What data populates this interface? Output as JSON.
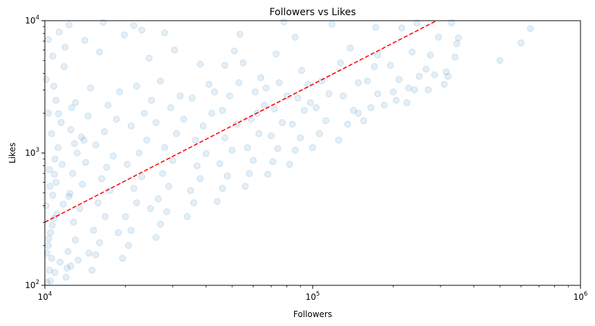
{
  "chart_data": {
    "type": "scatter",
    "title": "Followers vs Likes",
    "xlabel": "Followers",
    "ylabel": "Likes",
    "xscale": "log",
    "yscale": "log",
    "xlim": [
      10000,
      1000000
    ],
    "ylim": [
      100,
      10000
    ],
    "grid": false,
    "x_ticks": [
      {
        "value": 10000,
        "base": "10",
        "exp": "4"
      },
      {
        "value": 100000,
        "base": "10",
        "exp": "5"
      },
      {
        "value": 1000000,
        "base": "10",
        "exp": "6"
      }
    ],
    "y_ticks": [
      {
        "value": 100,
        "base": "10",
        "exp": "2"
      },
      {
        "value": 1000,
        "base": "10",
        "exp": "3"
      },
      {
        "value": 10000,
        "base": "10",
        "exp": "4"
      }
    ],
    "marker_color": "#1f77b4",
    "marker_alpha": 0.12,
    "trend_color": "#ff0000",
    "trend_line": {
      "style": "dashed",
      "x": [
        10000,
        290000
      ],
      "y": [
        300,
        10000
      ]
    },
    "series": [
      {
        "points": [
          [
            10200,
            105
          ],
          [
            10400,
            130
          ],
          [
            10600,
            160
          ],
          [
            10300,
            200
          ],
          [
            10500,
            250
          ],
          [
            10800,
            320
          ],
          [
            10100,
            400
          ],
          [
            10700,
            480
          ],
          [
            11000,
            600
          ],
          [
            10400,
            750
          ],
          [
            10900,
            900
          ],
          [
            11200,
            1100
          ],
          [
            10600,
            1400
          ],
          [
            11500,
            1700
          ],
          [
            10300,
            2000
          ],
          [
            11000,
            2500
          ],
          [
            10800,
            3200
          ],
          [
            11800,
            4500
          ],
          [
            11300,
            8200
          ],
          [
            12000,
            115
          ],
          [
            12500,
            140
          ],
          [
            12200,
            180
          ],
          [
            13000,
            220
          ],
          [
            12800,
            300
          ],
          [
            13500,
            380
          ],
          [
            12300,
            470
          ],
          [
            13800,
            580
          ],
          [
            12700,
            700
          ],
          [
            14200,
            850
          ],
          [
            13200,
            1000
          ],
          [
            14000,
            1250
          ],
          [
            12500,
            1500
          ],
          [
            14500,
            1900
          ],
          [
            13000,
            2400
          ],
          [
            14800,
            3100
          ],
          [
            15000,
            130
          ],
          [
            15500,
            170
          ],
          [
            16000,
            210
          ],
          [
            15200,
            260
          ],
          [
            16800,
            330
          ],
          [
            15800,
            420
          ],
          [
            17500,
            520
          ],
          [
            16300,
            640
          ],
          [
            17000,
            780
          ],
          [
            18000,
            950
          ],
          [
            15500,
            1150
          ],
          [
            16700,
            1450
          ],
          [
            18500,
            1800
          ],
          [
            17200,
            2300
          ],
          [
            19000,
            2900
          ],
          [
            16000,
            5800
          ],
          [
            19500,
            160
          ],
          [
            20500,
            200
          ],
          [
            21000,
            260
          ],
          [
            20000,
            330
          ],
          [
            22000,
            420
          ],
          [
            21500,
            540
          ],
          [
            23000,
            660
          ],
          [
            20300,
            820
          ],
          [
            22500,
            1000
          ],
          [
            24000,
            1250
          ],
          [
            21000,
            1600
          ],
          [
            23500,
            2000
          ],
          [
            25000,
            2500
          ],
          [
            22000,
            3200
          ],
          [
            24500,
            5200
          ],
          [
            21500,
            9200
          ],
          [
            26000,
            230
          ],
          [
            27000,
            290
          ],
          [
            28500,
            360
          ],
          [
            26500,
            450
          ],
          [
            29000,
            560
          ],
          [
            27500,
            700
          ],
          [
            30000,
            880
          ],
          [
            28000,
            1100
          ],
          [
            31000,
            1400
          ],
          [
            26000,
            1700
          ],
          [
            29500,
            2200
          ],
          [
            32000,
            2700
          ],
          [
            27000,
            3500
          ],
          [
            30500,
            6000
          ],
          [
            28000,
            8100
          ],
          [
            34000,
            330
          ],
          [
            36000,
            420
          ],
          [
            35000,
            520
          ],
          [
            38000,
            640
          ],
          [
            37000,
            800
          ],
          [
            40000,
            990
          ],
          [
            36500,
            1250
          ],
          [
            39000,
            1600
          ],
          [
            42000,
            2000
          ],
          [
            35500,
            2600
          ],
          [
            41000,
            3300
          ],
          [
            38000,
            4700
          ],
          [
            44000,
            430
          ],
          [
            46000,
            540
          ],
          [
            48000,
            670
          ],
          [
            45000,
            830
          ],
          [
            50000,
            1050
          ],
          [
            47000,
            1300
          ],
          [
            52000,
            1650
          ],
          [
            46000,
            2100
          ],
          [
            49000,
            2700
          ],
          [
            53000,
            3400
          ],
          [
            47000,
            4600
          ],
          [
            51000,
            5900
          ],
          [
            53500,
            7900
          ],
          [
            56000,
            560
          ],
          [
            58000,
            700
          ],
          [
            60000,
            880
          ],
          [
            57000,
            1100
          ],
          [
            63000,
            1400
          ],
          [
            59000,
            1800
          ],
          [
            66000,
            2300
          ],
          [
            61000,
            2900
          ],
          [
            64000,
            3700
          ],
          [
            68000,
            690
          ],
          [
            71000,
            860
          ],
          [
            74000,
            1080
          ],
          [
            70000,
            1350
          ],
          [
            77000,
            1700
          ],
          [
            72000,
            2150
          ],
          [
            80000,
            2700
          ],
          [
            75000,
            3400
          ],
          [
            73000,
            5600
          ],
          [
            78000,
            9800
          ],
          [
            82000,
            820
          ],
          [
            86000,
            1050
          ],
          [
            90000,
            1300
          ],
          [
            84000,
            1650
          ],
          [
            93000,
            2100
          ],
          [
            88000,
            2600
          ],
          [
            96000,
            3300
          ],
          [
            91000,
            4200
          ],
          [
            86000,
            7500
          ],
          [
            100000,
            1100
          ],
          [
            106000,
            1400
          ],
          [
            112000,
            1750
          ],
          [
            103000,
            2200
          ],
          [
            115000,
            2800
          ],
          [
            108000,
            3500
          ],
          [
            118000,
            9400
          ],
          [
            125000,
            1250
          ],
          [
            135000,
            1650
          ],
          [
            142000,
            2100
          ],
          [
            130000,
            2700
          ],
          [
            148000,
            3400
          ],
          [
            138000,
            6200
          ],
          [
            155000,
            1750
          ],
          [
            165000,
            2200
          ],
          [
            175000,
            2800
          ],
          [
            160000,
            3500
          ],
          [
            170000,
            4500
          ],
          [
            175000,
            5500
          ],
          [
            172000,
            8900
          ],
          [
            185000,
            2300
          ],
          [
            200000,
            2900
          ],
          [
            210000,
            3600
          ],
          [
            195000,
            4600
          ],
          [
            205000,
            2500
          ],
          [
            215000,
            8800
          ],
          [
            225000,
            2400
          ],
          [
            240000,
            3000
          ],
          [
            250000,
            3800
          ],
          [
            235000,
            5800
          ],
          [
            245000,
            9600
          ],
          [
            270000,
            3000
          ],
          [
            285000,
            3900
          ],
          [
            275000,
            5500
          ],
          [
            295000,
            7500
          ],
          [
            310000,
            3300
          ],
          [
            320000,
            3800
          ],
          [
            315000,
            4100
          ],
          [
            340000,
            5300
          ],
          [
            345000,
            6700
          ],
          [
            350000,
            7400
          ],
          [
            330000,
            9600
          ],
          [
            500000,
            5000
          ],
          [
            600000,
            6800
          ],
          [
            650000,
            8700
          ],
          [
            10500,
            108
          ],
          [
            10900,
            125
          ],
          [
            11400,
            150
          ],
          [
            12100,
            135
          ],
          [
            13300,
            155
          ],
          [
            14600,
            175
          ],
          [
            10200,
            175
          ],
          [
            10350,
            225
          ],
          [
            10650,
            285
          ],
          [
            11100,
            345
          ],
          [
            11700,
            410
          ],
          [
            12400,
            495
          ],
          [
            10450,
            560
          ],
          [
            10850,
            690
          ],
          [
            11600,
            820
          ],
          [
            12900,
            1180
          ],
          [
            13700,
            1320
          ],
          [
            11250,
            1980
          ],
          [
            12600,
            2200
          ],
          [
            18800,
            250
          ],
          [
            24800,
            380
          ],
          [
            33000,
            1800
          ],
          [
            43000,
            2900
          ],
          [
            55000,
            4800
          ],
          [
            62000,
            2000
          ],
          [
            67000,
            3100
          ],
          [
            98000,
            2400
          ],
          [
            127000,
            4800
          ],
          [
            148000,
            2000
          ],
          [
            228000,
            3100
          ],
          [
            265000,
            4300
          ],
          [
            10100,
            3600
          ],
          [
            10700,
            5400
          ],
          [
            10300,
            7200
          ],
          [
            11900,
            6300
          ],
          [
            14100,
            7100
          ],
          [
            16500,
            9700
          ],
          [
            19800,
            7800
          ],
          [
            23000,
            8500
          ],
          [
            12300,
            9300
          ]
        ]
      }
    ]
  }
}
